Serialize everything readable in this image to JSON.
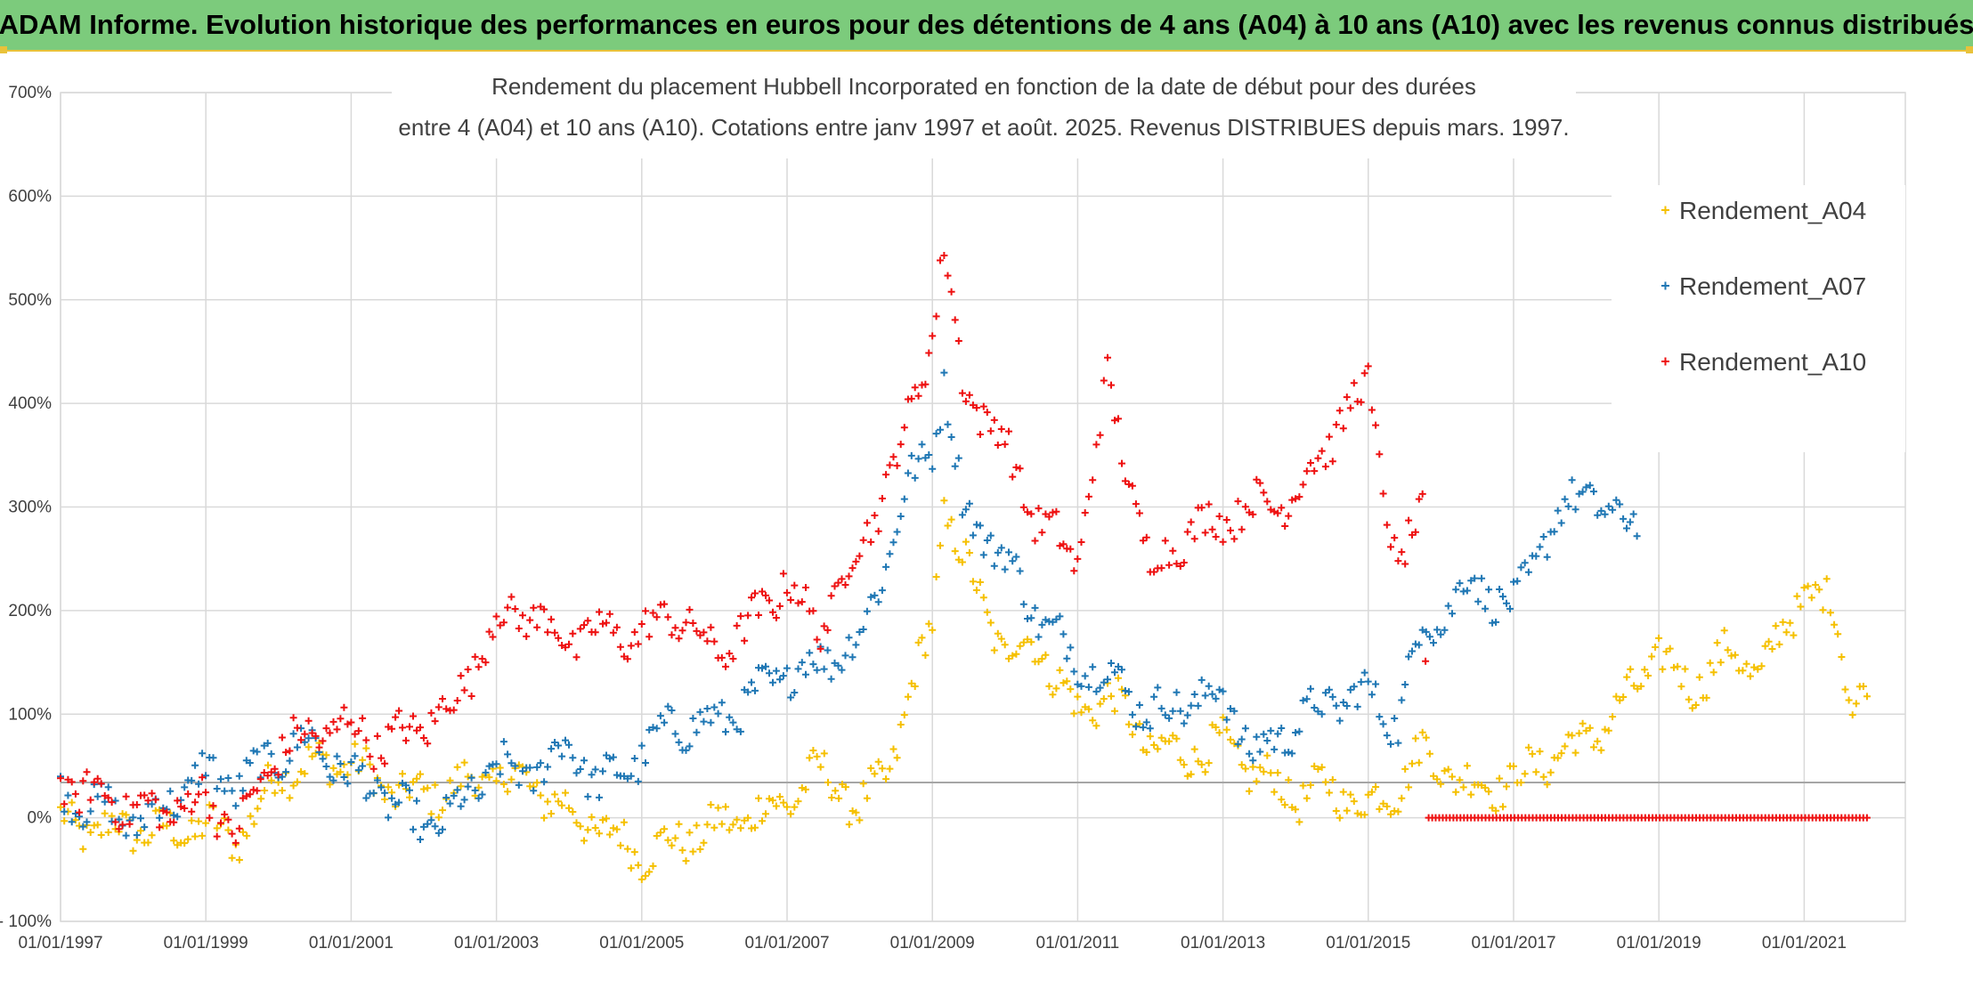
{
  "banner": {
    "title": "ADAM Informe. Evolution historique des performances en euros pour des détentions de 4 ans (A04) à 10 ans (A10) avec les revenus connus distribués"
  },
  "chart_data": {
    "type": "scatter",
    "title_lines": [
      "Rendement du placement Hubbell Incorporated en fonction de la date de début pour des durées",
      "entre 4 (A04) et 10 ans (A10). Cotations entre janv 1997 et août. 2025. Revenus DISTRIBUES depuis mars. 1997."
    ],
    "x_ticks": [
      "01/01/1997",
      "01/01/1999",
      "01/01/2001",
      "01/01/2003",
      "01/01/2005",
      "01/01/2007",
      "01/01/2009",
      "01/01/2011",
      "01/01/2013",
      "01/01/2015",
      "01/01/2017",
      "01/01/2019",
      "01/01/2021"
    ],
    "y_ticks": [
      "- 100%",
      "0%",
      "100%",
      "200%",
      "300%",
      "400%",
      "500%",
      "600%",
      "700%"
    ],
    "ylim": [
      -100,
      700
    ],
    "xlim": [
      "1997-01-01",
      "2021-12-31"
    ],
    "y_unit": "%",
    "reference_line_y": 34,
    "grid": true,
    "legend_position": "top-right",
    "series": [
      {
        "name": "Rendement_A04",
        "color": "#f5c000",
        "points": [
          [
            "1997-01-01",
            -5
          ],
          [
            "1997-06-01",
            -12
          ],
          [
            "1998-01-01",
            -10
          ],
          [
            "1998-06-01",
            -15
          ],
          [
            "1999-01-01",
            -8
          ],
          [
            "1999-06-01",
            -20
          ],
          [
            "1999-09-01",
            0
          ],
          [
            "2000-01-01",
            45
          ],
          [
            "2000-06-01",
            50
          ],
          [
            "2001-01-01",
            55
          ],
          [
            "2001-06-01",
            30
          ],
          [
            "2002-01-01",
            20
          ],
          [
            "2002-06-01",
            30
          ],
          [
            "2003-01-01",
            40
          ],
          [
            "2003-06-01",
            35
          ],
          [
            "2004-01-01",
            5
          ],
          [
            "2004-06-01",
            -10
          ],
          [
            "2005-01-01",
            -35
          ],
          [
            "2005-06-01",
            -25
          ],
          [
            "2006-01-01",
            -10
          ],
          [
            "2006-06-01",
            0
          ],
          [
            "2007-01-01",
            15
          ],
          [
            "2007-06-01",
            45
          ],
          [
            "2007-09-01",
            35
          ],
          [
            "2008-01-01",
            5
          ],
          [
            "2008-06-01",
            50
          ],
          [
            "2008-09-01",
            110
          ],
          [
            "2009-01-01",
            190
          ],
          [
            "2009-03-01",
            300
          ],
          [
            "2009-06-01",
            250
          ],
          [
            "2010-01-01",
            160
          ],
          [
            "2010-06-01",
            170
          ],
          [
            "2011-01-01",
            100
          ],
          [
            "2011-06-01",
            120
          ],
          [
            "2012-01-01",
            70
          ],
          [
            "2012-06-01",
            60
          ],
          [
            "2013-01-01",
            70
          ],
          [
            "2013-06-01",
            45
          ],
          [
            "2014-01-01",
            20
          ],
          [
            "2014-06-01",
            30
          ],
          [
            "2015-01-01",
            10
          ],
          [
            "2015-06-01",
            30
          ],
          [
            "2015-10-01",
            65
          ],
          [
            "2016-01-01",
            50
          ],
          [
            "2016-06-01",
            30
          ],
          [
            "2017-01-01",
            35
          ],
          [
            "2017-06-01",
            55
          ],
          [
            "2018-01-01",
            75
          ],
          [
            "2018-06-01",
            100
          ],
          [
            "2019-01-01",
            160
          ],
          [
            "2019-06-01",
            125
          ],
          [
            "2020-01-01",
            160
          ],
          [
            "2020-06-01",
            140
          ],
          [
            "2021-01-01",
            220
          ],
          [
            "2021-06-01",
            200
          ],
          [
            "2021-09-01",
            110
          ],
          [
            "2021-12-01",
            135
          ]
        ]
      },
      {
        "name": "Rendement_A07",
        "color": "#1f77b4",
        "points": [
          [
            "1997-01-01",
            20
          ],
          [
            "1997-06-01",
            15
          ],
          [
            "1998-01-01",
            -5
          ],
          [
            "1998-06-01",
            10
          ],
          [
            "1999-01-01",
            45
          ],
          [
            "1999-06-01",
            30
          ],
          [
            "2000-01-01",
            60
          ],
          [
            "2000-06-01",
            75
          ],
          [
            "2001-01-01",
            40
          ],
          [
            "2001-06-01",
            25
          ],
          [
            "2002-01-01",
            -10
          ],
          [
            "2002-06-01",
            5
          ],
          [
            "2003-01-01",
            50
          ],
          [
            "2003-06-01",
            40
          ],
          [
            "2004-01-01",
            70
          ],
          [
            "2004-06-01",
            30
          ],
          [
            "2005-01-01",
            60
          ],
          [
            "2005-06-01",
            90
          ],
          [
            "2006-01-01",
            90
          ],
          [
            "2006-06-01",
            110
          ],
          [
            "2007-01-01",
            140
          ],
          [
            "2007-06-01",
            150
          ],
          [
            "2008-01-01",
            170
          ],
          [
            "2008-06-01",
            260
          ],
          [
            "2008-09-01",
            320
          ],
          [
            "2009-01-01",
            360
          ],
          [
            "2009-03-01",
            420
          ],
          [
            "2009-06-01",
            300
          ],
          [
            "2010-01-01",
            250
          ],
          [
            "2010-06-01",
            200
          ],
          [
            "2011-01-01",
            150
          ],
          [
            "2011-06-01",
            140
          ],
          [
            "2012-01-01",
            100
          ],
          [
            "2012-06-01",
            110
          ],
          [
            "2013-01-01",
            120
          ],
          [
            "2013-06-01",
            60
          ],
          [
            "2014-01-01",
            90
          ],
          [
            "2014-06-01",
            110
          ],
          [
            "2015-01-01",
            120
          ],
          [
            "2015-06-01",
            90
          ],
          [
            "2015-10-01",
            190
          ],
          [
            "2016-01-01",
            190
          ],
          [
            "2016-06-01",
            230
          ],
          [
            "2017-01-01",
            200
          ],
          [
            "2017-06-01",
            270
          ],
          [
            "2018-01-01",
            320
          ],
          [
            "2018-06-01",
            280
          ],
          [
            "2018-10-01",
            300
          ]
        ]
      },
      {
        "name": "Rendement_A10",
        "color": "#ee1111",
        "points": [
          [
            "1997-01-01",
            30
          ],
          [
            "1997-06-01",
            25
          ],
          [
            "1998-01-01",
            10
          ],
          [
            "1998-06-01",
            5
          ],
          [
            "1999-01-01",
            20
          ],
          [
            "1999-06-01",
            -15
          ],
          [
            "2000-01-01",
            65
          ],
          [
            "2000-06-01",
            80
          ],
          [
            "2001-01-01",
            90
          ],
          [
            "2001-06-01",
            70
          ],
          [
            "2002-01-01",
            90
          ],
          [
            "2002-06-01",
            110
          ],
          [
            "2003-01-01",
            190
          ],
          [
            "2003-06-01",
            200
          ],
          [
            "2004-01-01",
            170
          ],
          [
            "2004-06-01",
            180
          ],
          [
            "2005-01-01",
            175
          ],
          [
            "2005-06-01",
            200
          ],
          [
            "2006-01-01",
            160
          ],
          [
            "2006-06-01",
            180
          ],
          [
            "2007-01-01",
            230
          ],
          [
            "2007-06-01",
            180
          ],
          [
            "2008-01-01",
            260
          ],
          [
            "2008-06-01",
            330
          ],
          [
            "2008-09-01",
            380
          ],
          [
            "2009-01-01",
            470
          ],
          [
            "2009-03-01",
            550
          ],
          [
            "2009-06-01",
            420
          ],
          [
            "2010-01-01",
            360
          ],
          [
            "2010-06-01",
            290
          ],
          [
            "2011-01-01",
            250
          ],
          [
            "2011-06-01",
            420
          ],
          [
            "2012-01-01",
            240
          ],
          [
            "2012-06-01",
            270
          ],
          [
            "2013-01-01",
            290
          ],
          [
            "2013-06-01",
            300
          ],
          [
            "2014-01-01",
            310
          ],
          [
            "2014-06-01",
            360
          ],
          [
            "2015-01-01",
            420
          ],
          [
            "2015-06-01",
            230
          ],
          [
            "2015-10-01",
            300
          ],
          [
            "2015-11-01",
            0
          ],
          [
            "2016-06-01",
            0
          ],
          [
            "2017-06-01",
            0
          ],
          [
            "2018-06-01",
            0
          ],
          [
            "2019-06-01",
            0
          ],
          [
            "2020-06-01",
            0
          ],
          [
            "2021-06-01",
            0
          ],
          [
            "2021-12-01",
            0
          ]
        ]
      }
    ]
  }
}
